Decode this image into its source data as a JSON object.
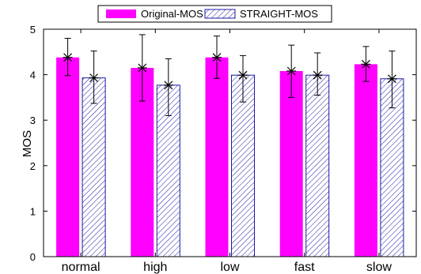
{
  "chart_data": {
    "type": "bar",
    "categories": [
      "normal",
      "high",
      "low",
      "fast",
      "slow"
    ],
    "ylabel": "MOS",
    "xlabel": "",
    "ylim": [
      0,
      5
    ],
    "yticks": [
      0,
      1,
      2,
      3,
      4,
      5
    ],
    "legend_position": "top-center",
    "grid": false,
    "series": [
      {
        "name": "Original-MOS",
        "style": "solid",
        "color": "#ff00ff",
        "values": [
          4.38,
          4.15,
          4.38,
          4.08,
          4.23
        ],
        "error_low": [
          3.98,
          3.42,
          3.92,
          3.5,
          3.85
        ],
        "error_high": [
          4.8,
          4.88,
          4.85,
          4.65,
          4.62
        ]
      },
      {
        "name": "STRAIGHT-MOS",
        "style": "hatched",
        "color": "#0000cc",
        "values": [
          3.93,
          3.77,
          3.99,
          3.99,
          3.91
        ],
        "error_low": [
          3.37,
          3.1,
          3.4,
          3.55,
          3.27
        ],
        "error_high": [
          4.52,
          4.35,
          4.42,
          4.48,
          4.52
        ]
      }
    ]
  }
}
